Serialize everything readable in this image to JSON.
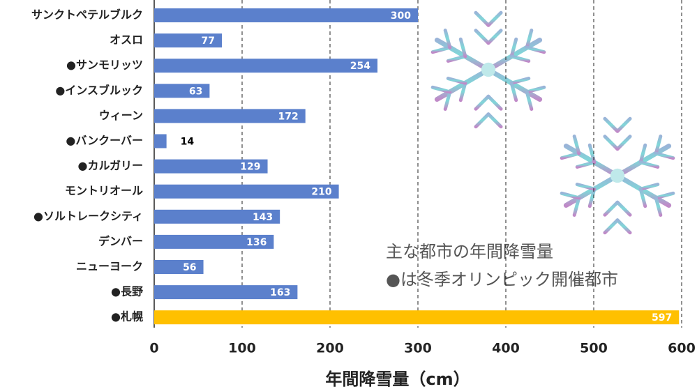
{
  "chart_data": {
    "type": "barh",
    "categories": [
      "サンクトペテルブルク",
      "オスロ",
      "●サンモリッツ",
      "●インスブルック",
      "ウィーン",
      "●バンクーバー",
      "●カルガリー",
      "モントリオール",
      "●ソルトレークシティ",
      "デンバー",
      "ニューヨーク",
      "●長野",
      "●札幌"
    ],
    "values": [
      300,
      77,
      254,
      63,
      172,
      14,
      129,
      210,
      143,
      136,
      56,
      163,
      597
    ],
    "colors": [
      "#5b80cc",
      "#5b80cc",
      "#5b80cc",
      "#5b80cc",
      "#5b80cc",
      "#5b80cc",
      "#5b80cc",
      "#5b80cc",
      "#5b80cc",
      "#5b80cc",
      "#5b80cc",
      "#5b80cc",
      "#ffc000"
    ],
    "xlabel": "年間降雪量（cm）",
    "xlim": [
      0,
      600
    ],
    "xticks": [
      0,
      100,
      200,
      300,
      400,
      500,
      600
    ],
    "grid": true,
    "annotations": [
      "主な都市の年間降雪量",
      "●は冬季オリンピック開催都市"
    ]
  }
}
